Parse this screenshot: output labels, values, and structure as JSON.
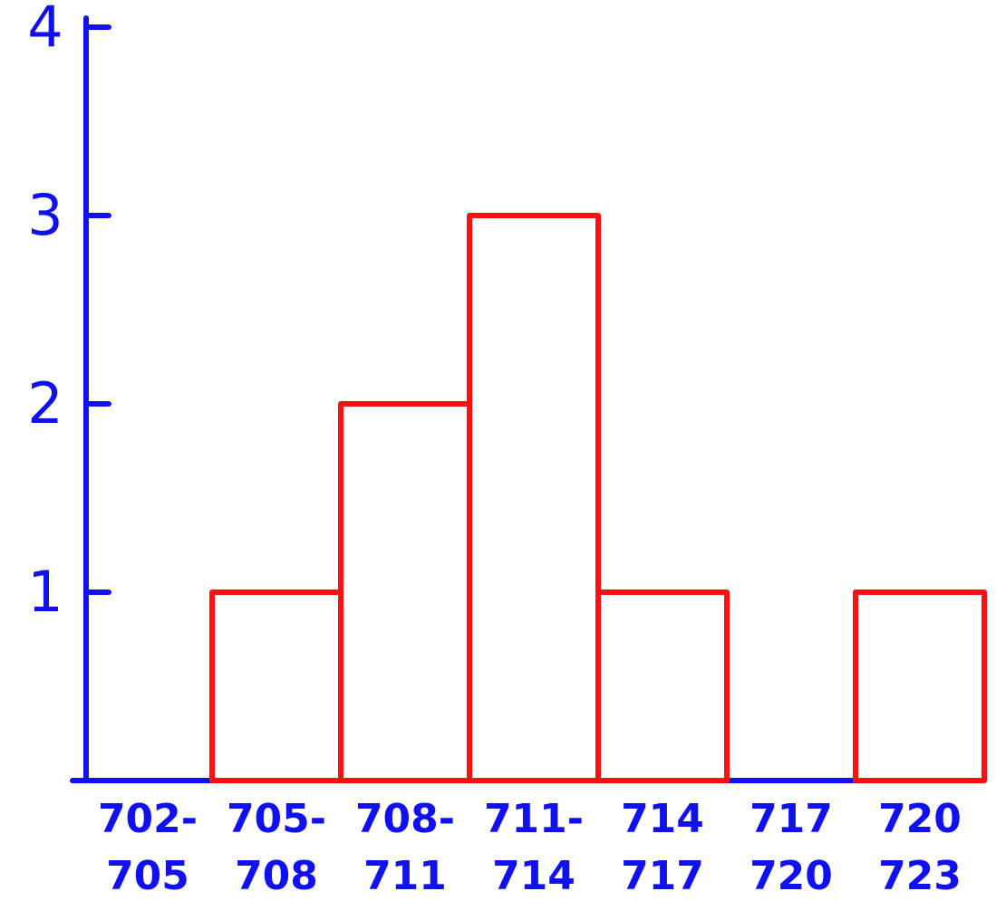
{
  "chart_data": {
    "type": "bar",
    "categories": [
      [
        "702-",
        "705"
      ],
      [
        "705-",
        "708"
      ],
      [
        "708-",
        "711"
      ],
      [
        "711-",
        "714"
      ],
      [
        "714",
        "717"
      ],
      [
        "717",
        "720"
      ],
      [
        "720",
        "723"
      ]
    ],
    "values": [
      0,
      1,
      2,
      3,
      1,
      0,
      1
    ],
    "color": "#ff1010",
    "axis_color": "#1010f0",
    "ylim": [
      0,
      4
    ],
    "yticks": [
      1,
      2,
      3,
      4
    ]
  }
}
